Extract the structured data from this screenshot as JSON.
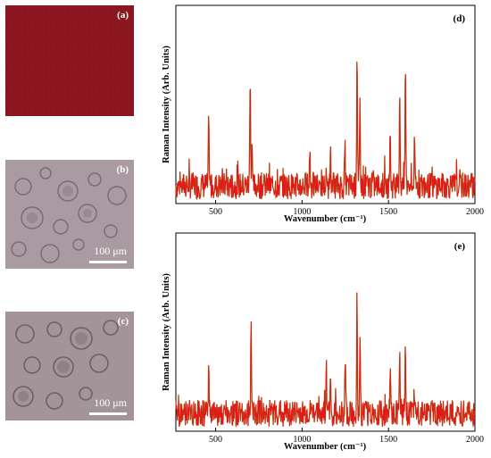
{
  "images": [
    {
      "label": "(a)"
    },
    {
      "label": "(b)",
      "scalebar_text": "100 μm"
    },
    {
      "label": "(c)",
      "scalebar_text": "100 μm"
    }
  ],
  "colors": {
    "spectrum": "#e8141c",
    "baseline": "#8a7a10",
    "film": "#8b1620",
    "micrograph": "#a89aa0"
  },
  "chart_data": [
    {
      "type": "line",
      "panel_label": "(d)",
      "xlabel": "Wavenumber (cm⁻¹)",
      "ylabel": "Raman Intensity (Arb. Units)",
      "xlim": [
        270,
        2000
      ],
      "xticks": [
        500,
        1000,
        1500,
        2000
      ],
      "y_ticklabels": false,
      "noise_level": 0.1,
      "peaks": [
        {
          "x": 460,
          "y": 0.45
        },
        {
          "x": 700,
          "y": 0.88
        },
        {
          "x": 710,
          "y": 0.3
        },
        {
          "x": 1045,
          "y": 0.28
        },
        {
          "x": 1165,
          "y": 0.33
        },
        {
          "x": 1248,
          "y": 0.27
        },
        {
          "x": 1318,
          "y": 0.98
        },
        {
          "x": 1335,
          "y": 0.62
        },
        {
          "x": 1510,
          "y": 0.4
        },
        {
          "x": 1565,
          "y": 0.75
        },
        {
          "x": 1598,
          "y": 0.92
        },
        {
          "x": 1650,
          "y": 0.3
        }
      ]
    },
    {
      "type": "line",
      "panel_label": "(e)",
      "xlabel": "Wavenumber (cm⁻¹)",
      "ylabel": "Raman Intensity (Arb. Units)",
      "xlim": [
        270,
        2000
      ],
      "xticks": [
        500,
        1000,
        1500,
        2000
      ],
      "y_ticklabels": false,
      "noise_level": 0.1,
      "peaks": [
        {
          "x": 460,
          "y": 0.36
        },
        {
          "x": 705,
          "y": 0.66
        },
        {
          "x": 1140,
          "y": 0.42
        },
        {
          "x": 1165,
          "y": 0.3
        },
        {
          "x": 1250,
          "y": 0.34
        },
        {
          "x": 1318,
          "y": 0.86
        },
        {
          "x": 1335,
          "y": 0.57
        },
        {
          "x": 1510,
          "y": 0.3
        },
        {
          "x": 1565,
          "y": 0.52
        },
        {
          "x": 1598,
          "y": 0.56
        },
        {
          "x": 1650,
          "y": 0.22
        }
      ]
    }
  ]
}
